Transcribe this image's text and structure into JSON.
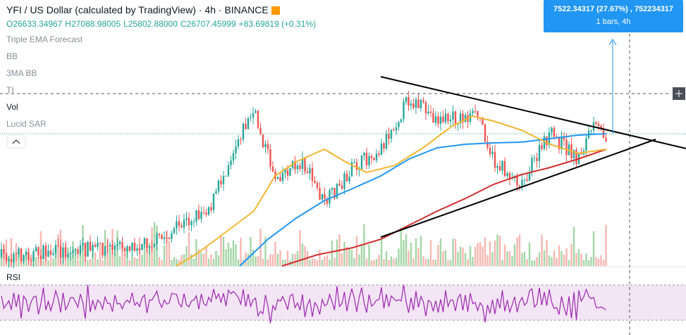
{
  "header": {
    "symbol": "YFI / US Dollar (calculated by TradingView)",
    "interval": "4h",
    "exchange": "BINANCE",
    "ohlc": [
      "O26633.34967",
      "H27088.98005",
      "L25802.88000",
      "C26707.45999",
      "+83.69819 (+0.31%)"
    ]
  },
  "indicators": [
    "Triple EMA Forecast",
    "BB",
    "3MA BB",
    "TI",
    "Vol",
    "Lucid SAR"
  ],
  "rsi_label": "RSI",
  "tooltip": {
    "line1": "7522.34317 (27.67%) , 752234317",
    "line2": "1 bars, 4h"
  }
}
